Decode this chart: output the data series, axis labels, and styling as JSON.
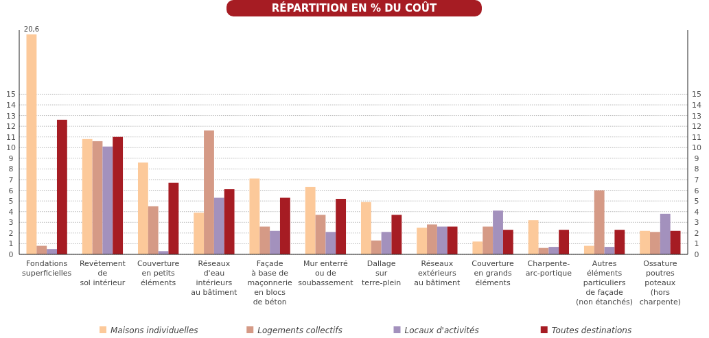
{
  "chart_data": {
    "type": "bar",
    "title": "RÉPARTITION EN % DU COÛT",
    "categories": [
      "Fondations\nsuperficielles",
      "Revêtement\nde\nsol intérieur",
      "Couverture\nen petits\néléments",
      "Réseaux\nd'eau\nintérieurs\nau bâtiment",
      "Façade\nà base de\nmaçonnerie\nen blocs\nde béton",
      "Mur enterré\nou de\nsoubassement",
      "Dallage\nsur\nterre-plein",
      "Réseaux\nextérieurs\nau bâtiment",
      "Couverture\nen grands\néléments",
      "Charpente-\narc-portique",
      "Autres\néléments\nparticuliers\nde façade\n(non étanchés)",
      "Ossature\npoutres\npoteaux\n(hors\ncharpente)"
    ],
    "series": [
      {
        "name": "Maisons individuelles",
        "color": "#fcc99a",
        "values": [
          20.6,
          10.8,
          8.6,
          3.9,
          7.1,
          6.3,
          4.9,
          2.5,
          1.2,
          3.2,
          0.8,
          2.2
        ],
        "value_labels": [
          "20,6",
          null,
          null,
          null,
          null,
          null,
          null,
          null,
          null,
          null,
          null,
          null
        ]
      },
      {
        "name": "Logements collectifs",
        "color": "#d59a86",
        "values": [
          0.8,
          10.6,
          4.5,
          11.6,
          2.6,
          3.7,
          1.3,
          2.8,
          2.6,
          0.6,
          6.0,
          2.1
        ]
      },
      {
        "name": "Locaux d'activités",
        "color": "#a391bd",
        "values": [
          0.5,
          10.1,
          0.3,
          5.3,
          2.2,
          2.1,
          2.1,
          2.6,
          4.1,
          0.7,
          0.7,
          3.8
        ]
      },
      {
        "name": "Toutes destinations",
        "color": "#a61c23",
        "values": [
          12.6,
          11.0,
          6.7,
          6.1,
          5.3,
          5.2,
          3.7,
          2.6,
          2.3,
          2.3,
          2.3,
          2.2
        ]
      }
    ],
    "ylim": [
      0,
      21
    ],
    "yticks": [
      0,
      1,
      2,
      3,
      4,
      5,
      6,
      7,
      8,
      9,
      10,
      11,
      12,
      13,
      14,
      15
    ],
    "y2lim": [
      0,
      21
    ],
    "y2ticks": [
      0,
      1,
      2,
      3,
      4,
      5,
      6,
      7,
      8,
      9,
      10,
      11,
      12,
      13,
      14,
      15
    ],
    "grid": "y",
    "legend": "bottom"
  }
}
